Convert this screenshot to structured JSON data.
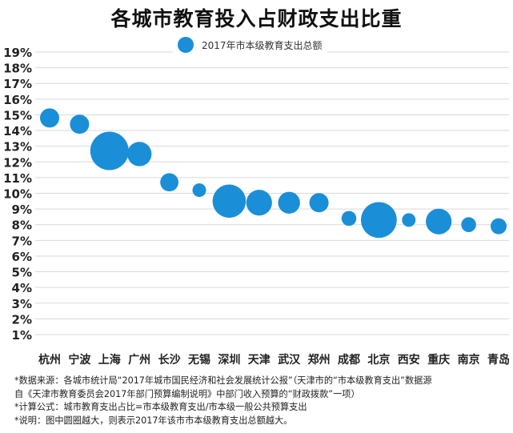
{
  "chart_data": {
    "type": "scatter",
    "title": "各城市教育投入占财政支出比重",
    "legend": {
      "label": "2017年市本级教育支出总额",
      "position": "top-center"
    },
    "xlabel": "",
    "ylabel": "",
    "yticks": [
      "1%",
      "2%",
      "3%",
      "4%",
      "5%",
      "6%",
      "7%",
      "8%",
      "9%",
      "10%",
      "11%",
      "12%",
      "13%",
      "14%",
      "15%",
      "16%",
      "17%",
      "18%",
      "19%"
    ],
    "ylim": [
      0,
      19.5
    ],
    "grid": "horizontal",
    "categories": [
      "杭州",
      "宁波",
      "上海",
      "广州",
      "长沙",
      "无锡",
      "深圳",
      "天津",
      "武汉",
      "郑州",
      "成都",
      "北京",
      "西安",
      "重庆",
      "南京",
      "青岛"
    ],
    "values": [
      14.8,
      14.4,
      12.7,
      12.5,
      10.7,
      10.2,
      9.5,
      9.4,
      9.4,
      9.4,
      8.4,
      8.3,
      8.3,
      8.2,
      8.0,
      7.9
    ],
    "bubble_size": [
      1.0,
      1.0,
      4.0,
      1.6,
      0.9,
      0.5,
      3.0,
      1.8,
      1.3,
      1.0,
      0.6,
      3.5,
      0.5,
      1.8,
      0.6,
      0.7
    ],
    "color": "#1a8fd8"
  },
  "notes": [
    "*数据来源：各城市统计局“2017年城市国民经济和社会发展统计公报”（天津市的“市本级教育支出”数据源",
    "自《天津市教育委员会2017年部门预算编制说明》中部门收入预算的“财政拨款”一项）",
    "*计算公式：城市教育支出占比=市本级教育支出/市本级一般公共预算支出",
    "*说明：图中圆圈越大，则表示2017年该市市本级教育支出总额越大。"
  ]
}
